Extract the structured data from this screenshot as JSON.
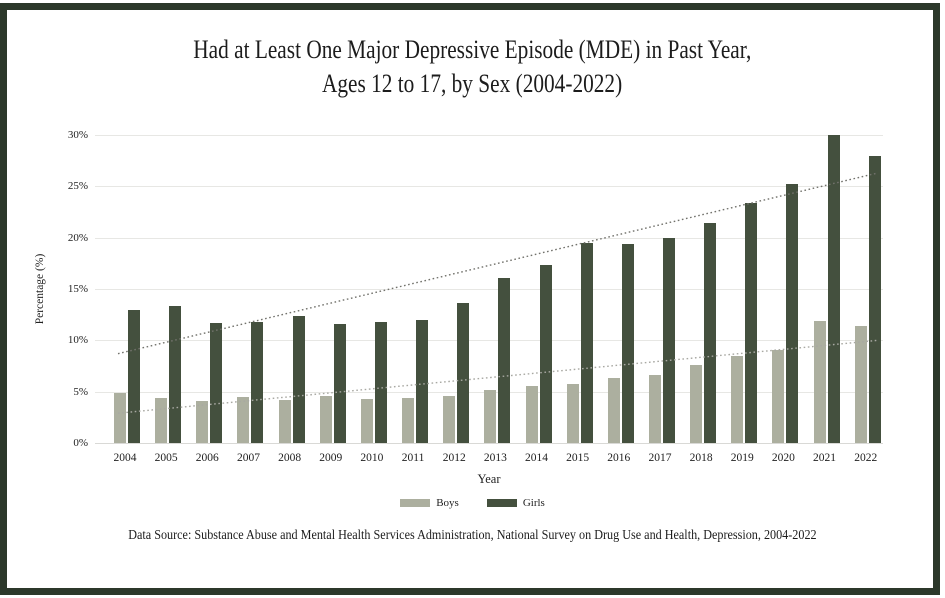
{
  "page": {
    "title_line1": "Had at Least One Major Depressive Episode (MDE) in Past Year,",
    "title_line2": "Ages 12 to 17, by Sex (2004-2022)",
    "source": "Data Source: Substance Abuse and Mental Health Services Administration, National Survey on Drug Use and Health, Depression, 2004-2022"
  },
  "colors": {
    "frame_border": "#2c382a",
    "boys_bar": "#acaf9f",
    "girls_bar": "#44503e",
    "gridline": "#e7e7e4",
    "boys_trendline": "#a8a8a2",
    "girls_trendline": "#72726c",
    "text": "#1e1e1e"
  },
  "chart_data": {
    "type": "bar",
    "title": "Had at Least One Major Depressive Episode (MDE) in Past Year, Ages 12 to 17, by Sex (2004-2022)",
    "xlabel": "Year",
    "ylabel": "Percentage (%)",
    "ylim": [
      0,
      30
    ],
    "ytick_values": [
      0,
      5,
      10,
      15,
      20,
      25,
      30
    ],
    "ytick_labels": [
      "0%",
      "5%",
      "10%",
      "15%",
      "20%",
      "25%",
      "30%"
    ],
    "grid": "horizontal",
    "legend_position": "bottom",
    "categories": [
      "2004",
      "2005",
      "2006",
      "2007",
      "2008",
      "2009",
      "2010",
      "2011",
      "2012",
      "2013",
      "2014",
      "2015",
      "2016",
      "2017",
      "2018",
      "2019",
      "2020",
      "2021",
      "2022"
    ],
    "series": [
      {
        "name": "Boys",
        "color": "#acaf9f",
        "values": [
          4.9,
          4.4,
          4.1,
          4.5,
          4.2,
          4.6,
          4.3,
          4.4,
          4.6,
          5.2,
          5.6,
          5.7,
          6.3,
          6.6,
          7.6,
          8.5,
          9.1,
          11.9,
          11.4
        ]
      },
      {
        "name": "Girls",
        "color": "#44503e",
        "values": [
          13.0,
          13.3,
          11.7,
          11.8,
          12.4,
          11.6,
          11.8,
          12.0,
          13.6,
          16.1,
          17.3,
          19.5,
          19.4,
          20.0,
          21.4,
          23.4,
          25.2,
          30.0,
          28.0
        ]
      }
    ],
    "trendlines": [
      {
        "series": "Boys",
        "style": "dotted",
        "color": "#a8a8a2",
        "start_value": 2.9,
        "end_value": 10.0
      },
      {
        "series": "Girls",
        "style": "dotted",
        "color": "#72726c",
        "start_value": 8.7,
        "end_value": 26.3
      }
    ]
  }
}
